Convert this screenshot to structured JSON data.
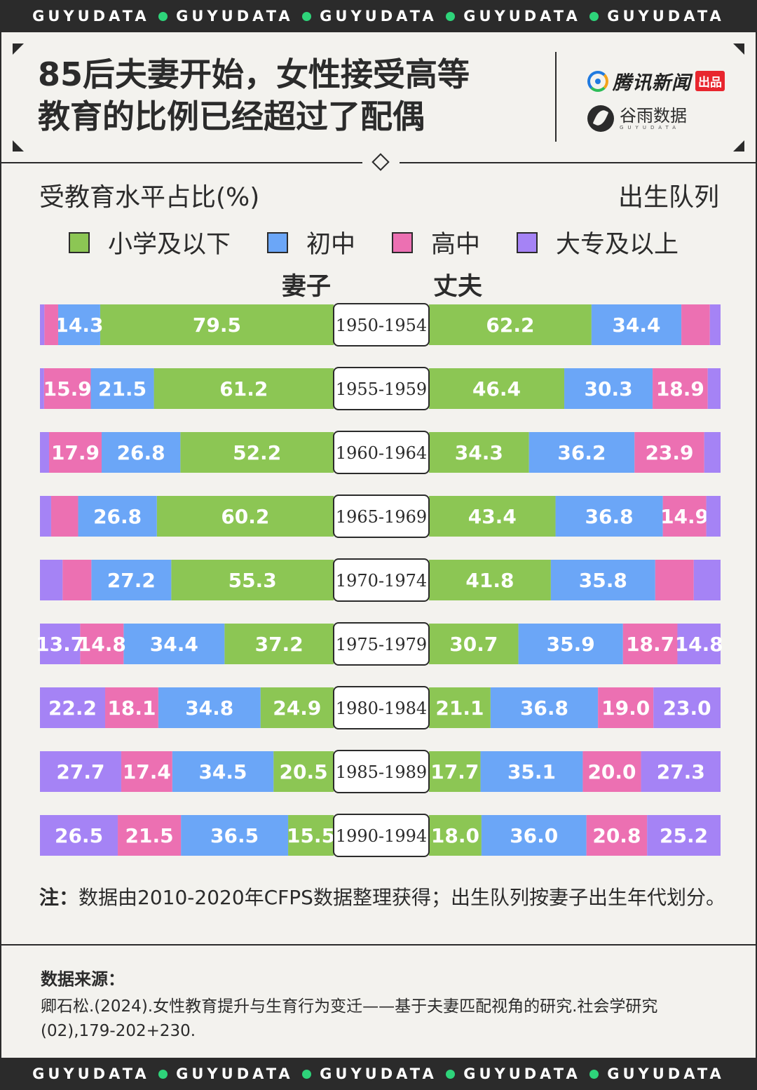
{
  "ticker": {
    "items": [
      "GUYUDATA",
      "GUYUDATA",
      "GUYUDATA",
      "GUYUDATA",
      "GUYUDATA"
    ]
  },
  "header": {
    "title_line1": "85后夫妻开始，女性接受高等",
    "title_line2": "教育的比例已经超过了配偶",
    "logo_tencent": "腾讯新闻",
    "logo_tencent_badge": "出品",
    "logo_guyu": "谷雨数据",
    "logo_guyu_en": "GUYUDATA"
  },
  "chart_data": {
    "type": "bar",
    "orientation": "horizontal-diverging",
    "ylabel": "受教育水平占比(%)",
    "category_label": "出生队列",
    "sides": [
      "妻子",
      "丈夫"
    ],
    "legend": [
      {
        "name": "小学及以下",
        "color": "#8cc654"
      },
      {
        "name": "初中",
        "color": "#6ba6f7"
      },
      {
        "name": "高中",
        "color": "#ec70b2"
      },
      {
        "name": "大专及以上",
        "color": "#a583f5"
      }
    ],
    "categories": [
      "1950-1954",
      "1955-1959",
      "1960-1964",
      "1965-1969",
      "1970-1974",
      "1975-1979",
      "1980-1984",
      "1985-1989",
      "1990-1994"
    ],
    "series": [
      {
        "name": "妻子",
        "segments": [
          {
            "values": [
              79.5,
              14.3,
              4.7,
              1.5
            ],
            "labels": [
              "79.5",
              "14.3",
              "",
              ""
            ]
          },
          {
            "values": [
              61.2,
              21.5,
              15.9,
              1.4
            ],
            "labels": [
              "61.2",
              "21.5",
              "15.9",
              ""
            ]
          },
          {
            "values": [
              52.2,
              26.8,
              17.9,
              3.1
            ],
            "labels": [
              "52.2",
              "26.8",
              "17.9",
              ""
            ]
          },
          {
            "values": [
              60.2,
              26.8,
              9.2,
              3.8
            ],
            "labels": [
              "60.2",
              "26.8",
              "",
              ""
            ]
          },
          {
            "values": [
              55.3,
              27.2,
              9.8,
              7.7
            ],
            "labels": [
              "55.3",
              "27.2",
              "",
              ""
            ]
          },
          {
            "values": [
              37.2,
              34.4,
              14.8,
              13.7
            ],
            "labels": [
              "37.2",
              "34.4",
              "14.8",
              "13.7"
            ]
          },
          {
            "values": [
              24.9,
              34.8,
              18.1,
              22.2
            ],
            "labels": [
              "24.9",
              "34.8",
              "18.1",
              "22.2"
            ]
          },
          {
            "values": [
              20.5,
              34.5,
              17.4,
              27.7
            ],
            "labels": [
              "20.5",
              "34.5",
              "17.4",
              "27.7"
            ]
          },
          {
            "values": [
              15.5,
              36.5,
              21.5,
              26.5
            ],
            "labels": [
              "15.5",
              "36.5",
              "21.5",
              "26.5"
            ]
          }
        ]
      },
      {
        "name": "丈夫",
        "segments": [
          {
            "values": [
              62.2,
              34.4,
              10.9,
              4.1
            ],
            "labels": [
              "62.2",
              "34.4",
              "",
              ""
            ]
          },
          {
            "values": [
              46.4,
              30.3,
              18.9,
              4.4
            ],
            "labels": [
              "46.4",
              "30.3",
              "18.9",
              ""
            ]
          },
          {
            "values": [
              34.3,
              36.2,
              23.9,
              5.6
            ],
            "labels": [
              "34.3",
              "36.2",
              "23.9",
              ""
            ]
          },
          {
            "values": [
              43.4,
              36.8,
              14.9,
              4.9
            ],
            "labels": [
              "43.4",
              "36.8",
              "14.9",
              ""
            ]
          },
          {
            "values": [
              41.8,
              35.8,
              13.2,
              9.2
            ],
            "labels": [
              "41.8",
              "35.8",
              "",
              ""
            ]
          },
          {
            "values": [
              30.7,
              35.9,
              18.7,
              14.8
            ],
            "labels": [
              "30.7",
              "35.9",
              "18.7",
              "14.8"
            ]
          },
          {
            "values": [
              21.1,
              36.8,
              19.0,
              23.0
            ],
            "labels": [
              "21.1",
              "36.8",
              "19.0",
              "23.0"
            ]
          },
          {
            "values": [
              17.7,
              35.1,
              20.0,
              27.3
            ],
            "labels": [
              "17.7",
              "35.1",
              "20.0",
              "27.3"
            ]
          },
          {
            "values": [
              18.0,
              36.0,
              20.8,
              25.2
            ],
            "labels": [
              "18.0",
              "36.0",
              "20.8",
              "25.2"
            ]
          }
        ]
      }
    ]
  },
  "note": {
    "label": "注：",
    "text": "数据由2010-2020年CFPS数据整理获得；出生队列按妻子出生年代划分。"
  },
  "source": {
    "heading": "数据来源：",
    "text": "卿石松.(2024).女性教育提升与生育行为变迁——基于夫妻匹配视角的研究.社会学研究(02),179-202+230."
  }
}
